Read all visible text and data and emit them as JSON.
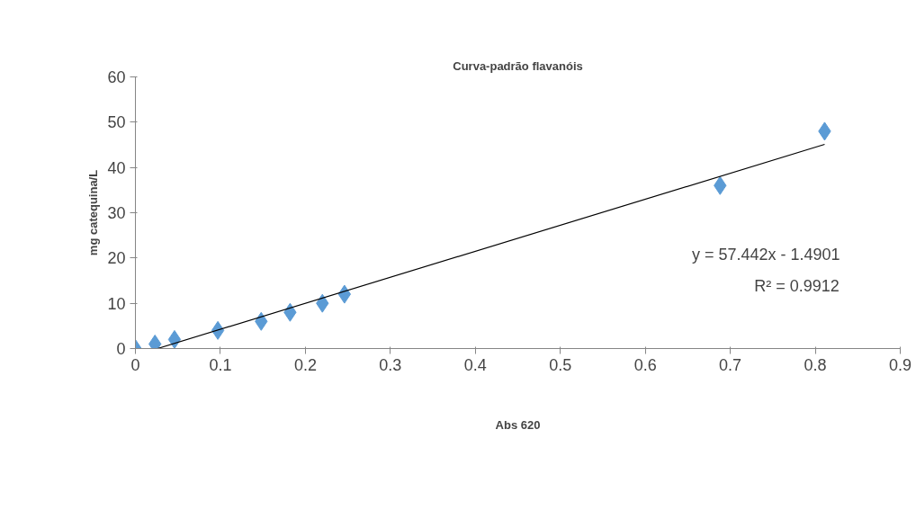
{
  "chart_data": {
    "type": "scatter",
    "title": "Curva-padrão flavanóis",
    "xlabel": "Abs 620",
    "ylabel": "mg catequina/L",
    "series": [
      {
        "color": "#5b9bd5",
        "marker": "diamond",
        "x": [
          0,
          0.023,
          0.046,
          0.097,
          0.148,
          0.182,
          0.22,
          0.246,
          0.688,
          0.811
        ],
        "values": [
          0,
          1,
          2,
          4,
          6,
          8,
          10,
          12,
          36,
          48
        ]
      },
      {
        "type": "line",
        "color": "#000000",
        "marker": "none",
        "line_style": "solid",
        "x": [
          0.026,
          0.811
        ],
        "values": [
          0,
          45.1
        ]
      }
    ],
    "xlim": [
      0,
      0.9
    ],
    "xticks": [
      0,
      0.1,
      0.2,
      0.3,
      0.4,
      0.5,
      0.6,
      0.7,
      0.8,
      0.9
    ],
    "ylim": [
      0,
      60
    ],
    "yticks": [
      0,
      10,
      20,
      30,
      40,
      50,
      60
    ],
    "grid": false,
    "annotations": [
      "y = 57.442x - 1.4901",
      "R² = 0.9912"
    ]
  }
}
